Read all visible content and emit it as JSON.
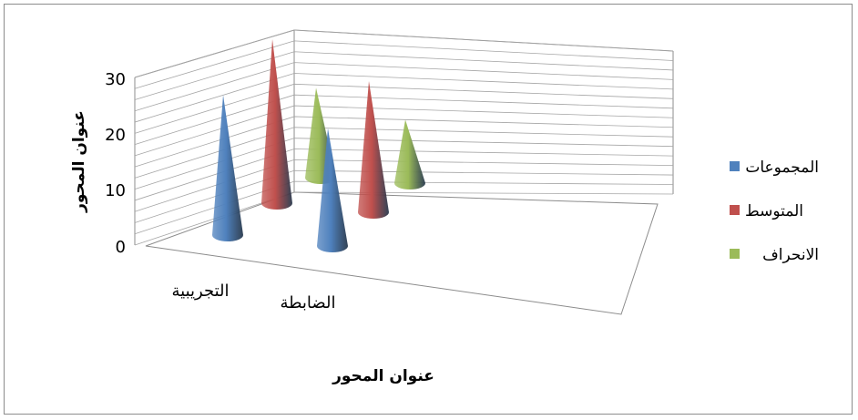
{
  "chart_data": {
    "type": "bar",
    "shape": "3d-cone",
    "categories": [
      "التجريبية",
      "الضابطة"
    ],
    "series": [
      {
        "name": "المجموعات",
        "values": [
          25,
          21
        ],
        "color": "#4f81bd"
      },
      {
        "name": "المتوسط",
        "values": [
          30,
          24
        ],
        "color": "#c0504d"
      },
      {
        "name": "الانحراف",
        "values": [
          17,
          12
        ],
        "color": "#9bbb59"
      }
    ],
    "ylim": [
      0,
      30
    ],
    "yticks": [
      "0",
      "10",
      "20",
      "30"
    ],
    "xlabel": "عنوان المحور",
    "ylabel": "عنوان المحور",
    "grid": true,
    "legend_position": "right"
  }
}
